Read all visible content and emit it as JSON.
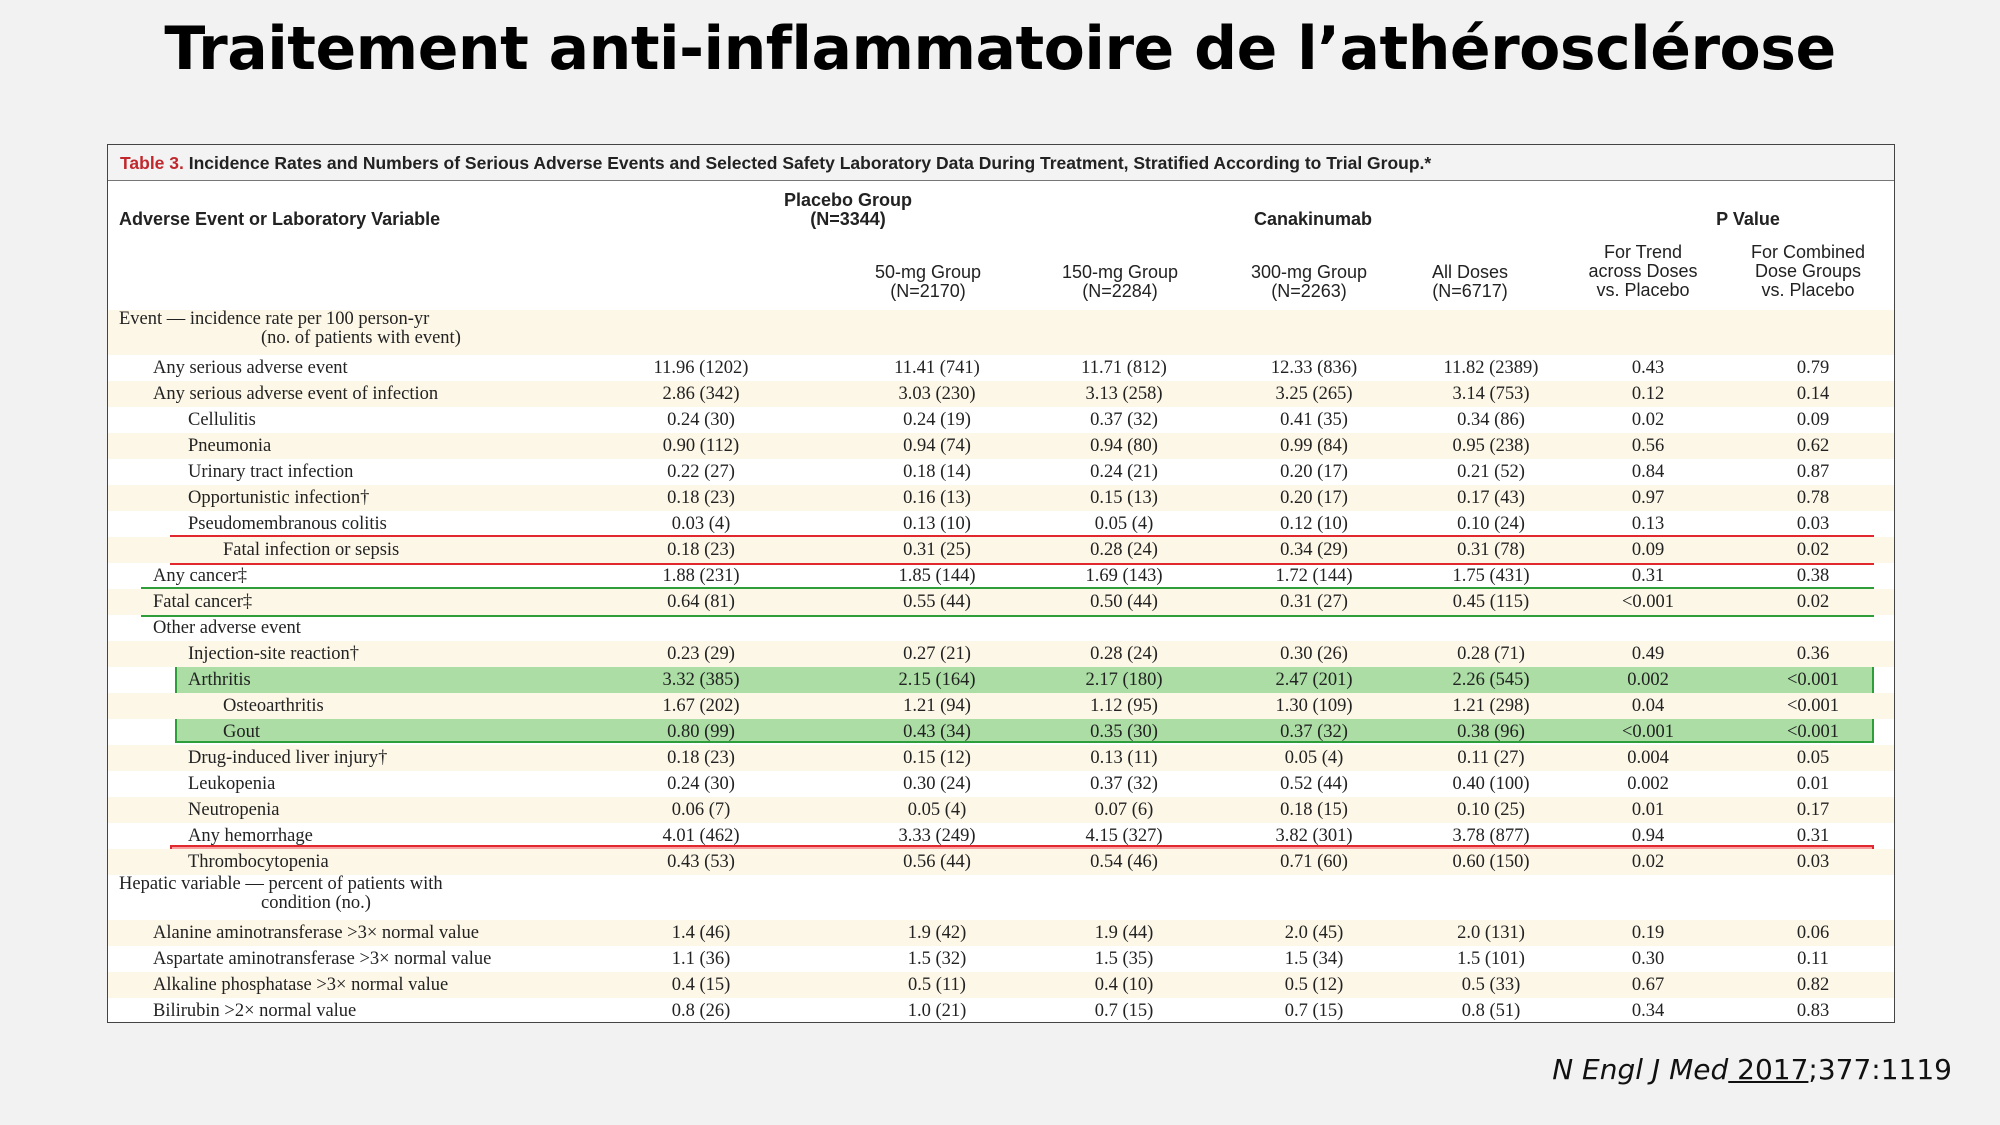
{
  "slide": {
    "title": "Traitement anti-inflammatoire de l’athérosclérose",
    "citation": {
      "journal": "N Engl J Med",
      "year": " 2017",
      "rest": ";377:1119"
    }
  },
  "table": {
    "caption_label": "Table 3.",
    "caption_text": " Incidence Rates and Numbers of Serious Adverse Events and Selected Safety Laboratory Data During Treatment, Stratified According to Trial Group.*",
    "headers": {
      "variable": "Adverse Event or Laboratory Variable",
      "placebo_line1": "Placebo Group",
      "placebo_line2": "(N=3344)",
      "canakinumab": "Canakinumab",
      "pvalue": "P Value",
      "g50_line1": "50-mg Group",
      "g50_line2": "(N=2170)",
      "g150_line1": "150-mg Group",
      "g150_line2": "(N=2284)",
      "g300_line1": "300-mg Group",
      "g300_line2": "(N=2263)",
      "all_line1": "All Doses",
      "all_line2": "(N=6717)",
      "trend_line1": "For Trend",
      "trend_line2": "across Doses",
      "trend_line3": "vs. Placebo",
      "comb_line1": "For Combined",
      "comb_line2": "Dose Groups",
      "comb_line3": "vs. Placebo"
    },
    "section_event_line1": "Event — incidence rate per 100 person-yr",
    "section_event_line2": "(no. of patients with event)",
    "section_hepatic_line1": "Hepatic variable — percent of patients with",
    "section_hepatic_line2": "condition (no.)",
    "rows": [
      {
        "label": "Any serious adverse event",
        "placebo": "11.96 (1202)",
        "g50": "11.41 (741)",
        "g150": "11.71 (812)",
        "g300": "12.33 (836)",
        "all": "11.82 (2389)",
        "trend": "0.43",
        "comb": "0.79"
      },
      {
        "label": "Any serious adverse event of infection",
        "placebo": "2.86 (342)",
        "g50": "3.03 (230)",
        "g150": "3.13 (258)",
        "g300": "3.25 (265)",
        "all": "3.14 (753)",
        "trend": "0.12",
        "comb": "0.14"
      },
      {
        "label": "Cellulitis",
        "placebo": "0.24 (30)",
        "g50": "0.24 (19)",
        "g150": "0.37 (32)",
        "g300": "0.41 (35)",
        "all": "0.34 (86)",
        "trend": "0.02",
        "comb": "0.09"
      },
      {
        "label": "Pneumonia",
        "placebo": "0.90 (112)",
        "g50": "0.94 (74)",
        "g150": "0.94 (80)",
        "g300": "0.99 (84)",
        "all": "0.95 (238)",
        "trend": "0.56",
        "comb": "0.62"
      },
      {
        "label": "Urinary tract infection",
        "placebo": "0.22 (27)",
        "g50": "0.18 (14)",
        "g150": "0.24 (21)",
        "g300": "0.20 (17)",
        "all": "0.21 (52)",
        "trend": "0.84",
        "comb": "0.87"
      },
      {
        "label": "Opportunistic infection†",
        "placebo": "0.18 (23)",
        "g50": "0.16 (13)",
        "g150": "0.15 (13)",
        "g300": "0.20 (17)",
        "all": "0.17 (43)",
        "trend": "0.97",
        "comb": "0.78"
      },
      {
        "label": "Pseudomembranous colitis",
        "placebo": "0.03 (4)",
        "g50": "0.13 (10)",
        "g150": "0.05 (4)",
        "g300": "0.12 (10)",
        "all": "0.10 (24)",
        "trend": "0.13",
        "comb": "0.03"
      },
      {
        "label": "Fatal infection or sepsis",
        "placebo": "0.18 (23)",
        "g50": "0.31 (25)",
        "g150": "0.28 (24)",
        "g300": "0.34 (29)",
        "all": "0.31 (78)",
        "trend": "0.09",
        "comb": "0.02"
      },
      {
        "label": "Any cancer‡",
        "placebo": "1.88 (231)",
        "g50": "1.85 (144)",
        "g150": "1.69 (143)",
        "g300": "1.72 (144)",
        "all": "1.75 (431)",
        "trend": "0.31",
        "comb": "0.38"
      },
      {
        "label": "Fatal cancer‡",
        "placebo": "0.64 (81)",
        "g50": "0.55 (44)",
        "g150": "0.50 (44)",
        "g300": "0.31 (27)",
        "all": "0.45 (115)",
        "trend": "<0.001",
        "comb": "0.02"
      },
      {
        "label": "Other adverse event",
        "placebo": "",
        "g50": "",
        "g150": "",
        "g300": "",
        "all": "",
        "trend": "",
        "comb": ""
      },
      {
        "label": "Injection-site reaction†",
        "placebo": "0.23 (29)",
        "g50": "0.27 (21)",
        "g150": "0.28 (24)",
        "g300": "0.30 (26)",
        "all": "0.28 (71)",
        "trend": "0.49",
        "comb": "0.36"
      },
      {
        "label": "Arthritis",
        "placebo": "3.32 (385)",
        "g50": "2.15 (164)",
        "g150": "2.17 (180)",
        "g300": "2.47 (201)",
        "all": "2.26 (545)",
        "trend": "0.002",
        "comb": "<0.001"
      },
      {
        "label": "Osteoarthritis",
        "placebo": "1.67 (202)",
        "g50": "1.21 (94)",
        "g150": "1.12 (95)",
        "g300": "1.30 (109)",
        "all": "1.21 (298)",
        "trend": "0.04",
        "comb": "<0.001"
      },
      {
        "label": "Gout",
        "placebo": "0.80 (99)",
        "g50": "0.43 (34)",
        "g150": "0.35 (30)",
        "g300": "0.37 (32)",
        "all": "0.38 (96)",
        "trend": "<0.001",
        "comb": "<0.001"
      },
      {
        "label": "Drug-induced liver injury†",
        "placebo": "0.18 (23)",
        "g50": "0.15 (12)",
        "g150": "0.13 (11)",
        "g300": "0.05 (4)",
        "all": "0.11 (27)",
        "trend": "0.004",
        "comb": "0.05"
      },
      {
        "label": "Leukopenia",
        "placebo": "0.24 (30)",
        "g50": "0.30 (24)",
        "g150": "0.37 (32)",
        "g300": "0.52 (44)",
        "all": "0.40 (100)",
        "trend": "0.002",
        "comb": "0.01"
      },
      {
        "label": "Neutropenia",
        "placebo": "0.06 (7)",
        "g50": "0.05 (4)",
        "g150": "0.07 (6)",
        "g300": "0.18 (15)",
        "all": "0.10 (25)",
        "trend": "0.01",
        "comb": "0.17"
      },
      {
        "label": "Any hemorrhage",
        "placebo": "4.01 (462)",
        "g50": "3.33 (249)",
        "g150": "4.15 (327)",
        "g300": "3.82 (301)",
        "all": "3.78 (877)",
        "trend": "0.94",
        "comb": "0.31"
      },
      {
        "label": "Thrombocytopenia",
        "placebo": "0.43 (53)",
        "g50": "0.56 (44)",
        "g150": "0.54 (46)",
        "g300": "0.71 (60)",
        "all": "0.60 (150)",
        "trend": "0.02",
        "comb": "0.03"
      },
      {
        "label": "Alanine aminotransferase >3× normal value",
        "placebo": "1.4 (46)",
        "g50": "1.9 (42)",
        "g150": "1.9 (44)",
        "g300": "2.0 (45)",
        "all": "2.0 (131)",
        "trend": "0.19",
        "comb": "0.06"
      },
      {
        "label": "Aspartate aminotransferase >3× normal value",
        "placebo": "1.1 (36)",
        "g50": "1.5 (32)",
        "g150": "1.5 (35)",
        "g300": "1.5 (34)",
        "all": "1.5 (101)",
        "trend": "0.30",
        "comb": "0.11"
      },
      {
        "label": "Alkaline phosphatase >3× normal value",
        "placebo": "0.4 (15)",
        "g50": "0.5 (11)",
        "g150": "0.4 (10)",
        "g300": "0.5 (12)",
        "all": "0.5 (33)",
        "trend": "0.67",
        "comb": "0.82"
      },
      {
        "label": "Bilirubin >2× normal value",
        "placebo": "0.8 (26)",
        "g50": "1.0 (21)",
        "g150": "0.7 (15)",
        "g300": "0.7 (15)",
        "all": "0.8 (51)",
        "trend": "0.34",
        "comb": "0.83"
      }
    ],
    "highlight_colors": {
      "red": "#f46464",
      "green": "#78c86e"
    }
  }
}
